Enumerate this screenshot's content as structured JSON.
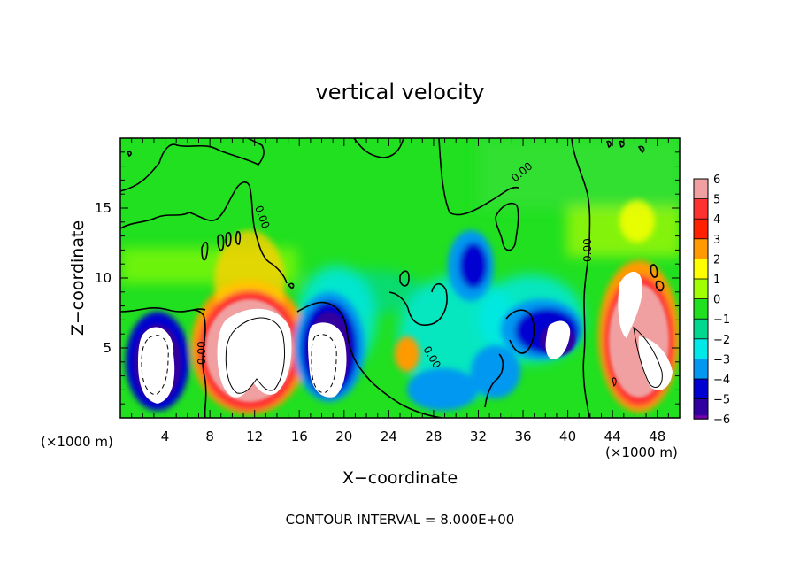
{
  "chart_data": {
    "type": "heatmap",
    "title": "vertical velocity",
    "xlabel": "X−coordinate",
    "ylabel": "Z−coordinate",
    "x_unit_left": "(×1000 m)",
    "x_unit_right": "(×1000 m)",
    "footer": "CONTOUR INTERVAL = 8.000E+00",
    "xlim": [
      0,
      50
    ],
    "ylim": [
      0,
      20
    ],
    "x_ticks": [
      4,
      8,
      12,
      16,
      20,
      24,
      28,
      32,
      36,
      40,
      44,
      48
    ],
    "y_ticks": [
      5,
      10,
      15
    ],
    "colorbar": {
      "levels": [
        6,
        5,
        4,
        3,
        2,
        1,
        0,
        -1,
        -2,
        -3,
        -4,
        -5,
        -6
      ],
      "colors": [
        "#f0a0a0",
        "#ff3030",
        "#ff2000",
        "#ff9a00",
        "#ffff00",
        "#a0ff00",
        "#20e020",
        "#00d890",
        "#00e8e8",
        "#0098f0",
        "#0000d0",
        "#3000a0",
        "#7000a8"
      ]
    },
    "contour_label": "0.00",
    "features": [
      {
        "kind": "downdraft",
        "x": 3.5,
        "z": 4.2,
        "strength": -8
      },
      {
        "kind": "updraft",
        "x": 11.5,
        "z": 5.0,
        "strength": 12
      },
      {
        "kind": "downdraft",
        "x": 18.5,
        "z": 5.0,
        "strength": -8
      },
      {
        "kind": "downdraft",
        "x": 30.5,
        "z": 10.0,
        "strength": -4
      },
      {
        "kind": "downdraft",
        "x": 37.5,
        "z": 6.0,
        "strength": -6
      },
      {
        "kind": "updraft",
        "x": 45.0,
        "z": 5.0,
        "strength": 10
      }
    ]
  }
}
